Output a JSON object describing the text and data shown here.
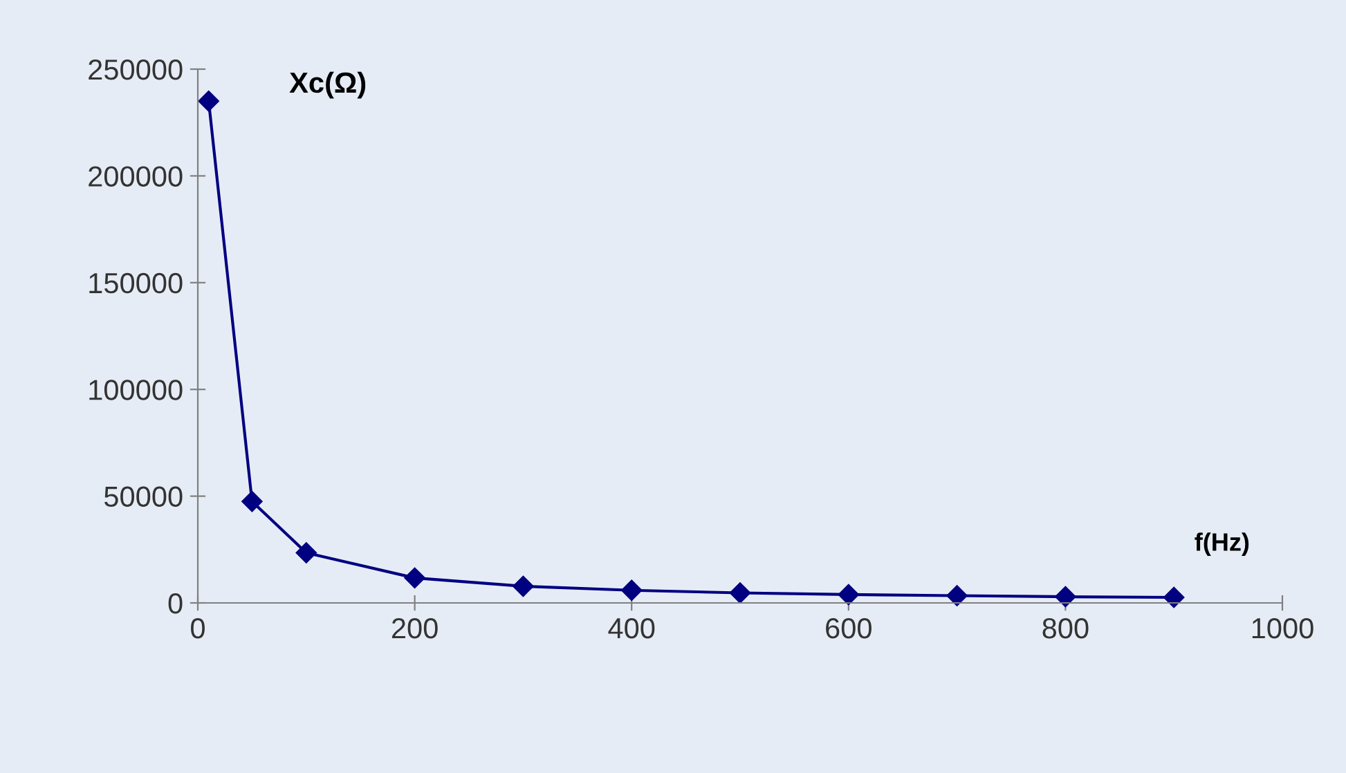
{
  "chart_data": {
    "type": "line",
    "xlabel": "f(Hz)",
    "ylabel": "Xc(Ω)",
    "x": [
      10,
      50,
      100,
      200,
      300,
      400,
      500,
      600,
      700,
      800,
      900
    ],
    "series": [
      {
        "color": "#000080",
        "values": [
          235000,
          47500,
          23500,
          11700,
          7800,
          5900,
          4700,
          3900,
          3400,
          2900,
          2600
        ]
      }
    ],
    "xlim": [
      0,
      1000
    ],
    "xticks": [
      0,
      200,
      400,
      600,
      800,
      1000
    ],
    "ylim": [
      0,
      250000
    ],
    "yticks": [
      0,
      50000,
      100000,
      150000,
      200000,
      250000
    ],
    "grid": false,
    "marker": "diamond",
    "line_style": "solid"
  }
}
